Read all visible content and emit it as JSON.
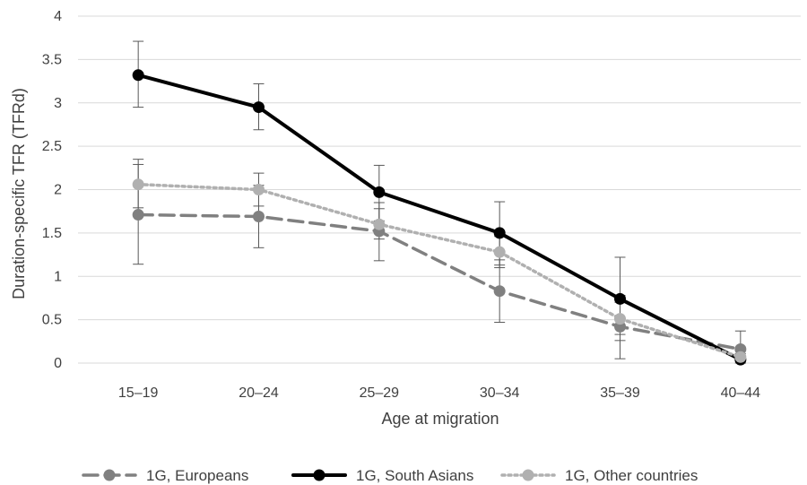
{
  "chart_data": {
    "type": "line",
    "title": "",
    "xlabel": "Age at migration",
    "ylabel": "Duration-specific TFR (TFRd)",
    "ylim": [
      0,
      4
    ],
    "yticks": [
      "0",
      "0.5",
      "1",
      "1.5",
      "2",
      "2.5",
      "3",
      "3.5",
      "4"
    ],
    "grid": "horizontal",
    "legend_position": "bottom",
    "categories": [
      "15–19",
      "20–24",
      "25–29",
      "30–34",
      "35–39",
      "40–44"
    ],
    "series": [
      {
        "name": "1G, Europeans",
        "color": "#808080",
        "line_style": "dashed",
        "values": [
          1.71,
          1.69,
          1.52,
          0.83,
          0.42,
          0.16
        ],
        "error_low": [
          1.14,
          1.33,
          1.18,
          0.47,
          0.05,
          0.0
        ],
        "error_high": [
          2.29,
          2.05,
          1.85,
          1.19,
          0.78,
          0.37
        ]
      },
      {
        "name": "1G, South Asians",
        "color": "#000000",
        "line_style": "solid",
        "values": [
          3.32,
          2.95,
          1.97,
          1.5,
          0.74,
          0.04
        ],
        "error_low": [
          2.95,
          2.69,
          1.64,
          1.13,
          0.26,
          0.0
        ],
        "error_high": [
          3.71,
          3.22,
          2.28,
          1.86,
          1.22,
          0.11
        ]
      },
      {
        "name": "1G, Other countries",
        "color": "#b0b0b0",
        "line_style": "dotted",
        "values": [
          2.06,
          2.0,
          1.6,
          1.28,
          0.51,
          0.07
        ],
        "error_low": [
          1.79,
          1.81,
          1.43,
          1.1,
          0.33,
          0.0
        ],
        "error_high": [
          2.35,
          2.19,
          1.78,
          1.46,
          0.7,
          0.15
        ]
      }
    ]
  }
}
